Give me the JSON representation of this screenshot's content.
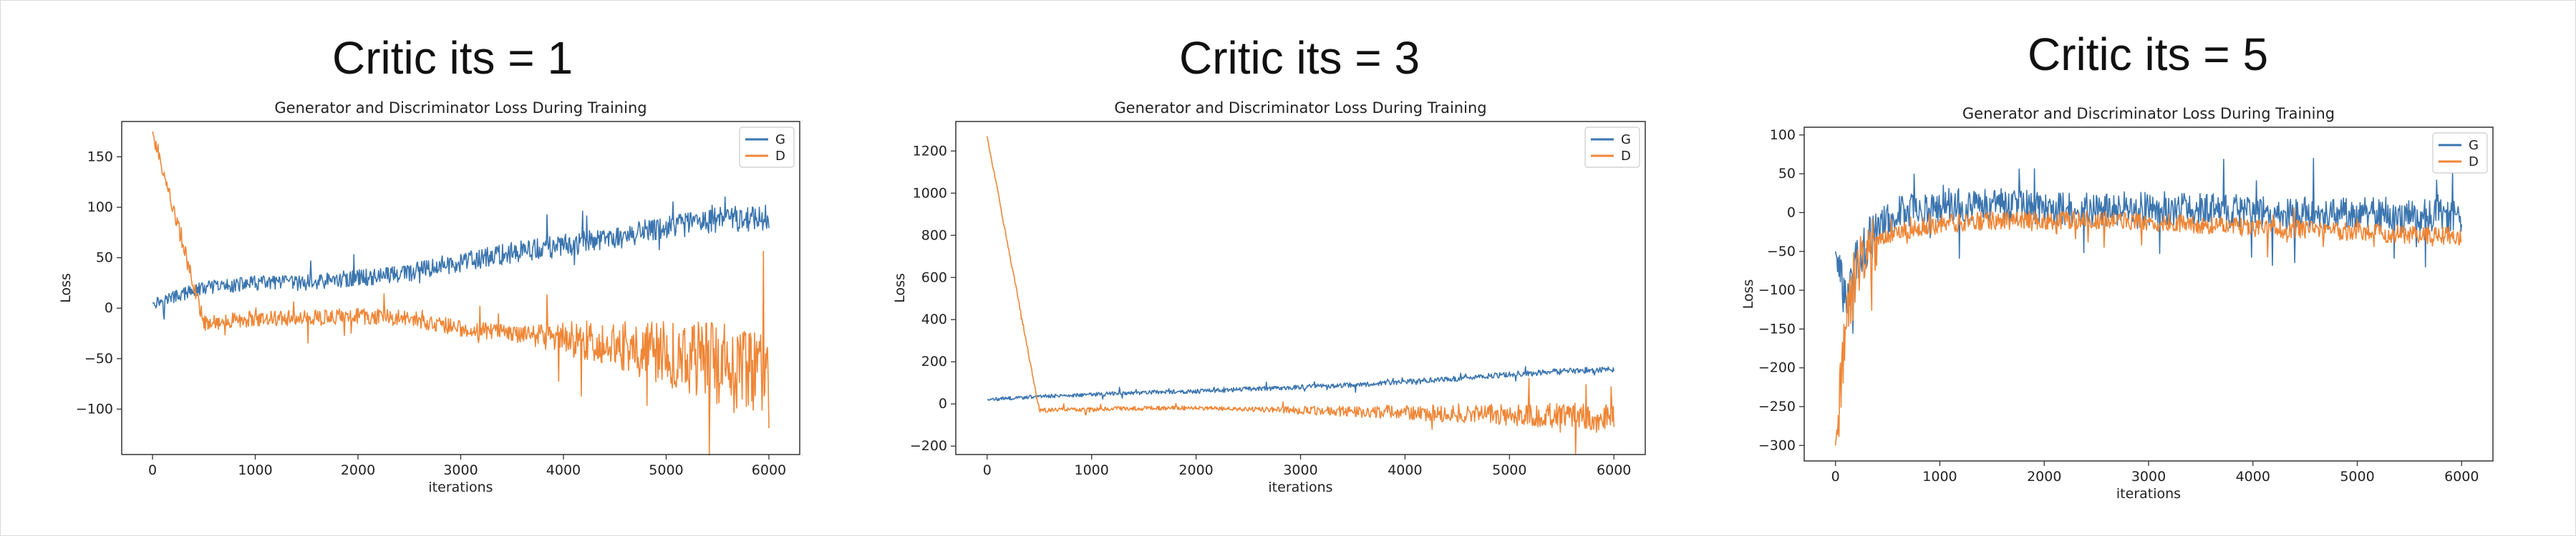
{
  "panels": [
    {
      "heading": "Critic its = 1"
    },
    {
      "heading": "Critic its = 3"
    },
    {
      "heading": "Critic its = 5"
    }
  ],
  "chart_data": [
    {
      "type": "line",
      "title": "Generator and Discriminator Loss During Training",
      "xlabel": "iterations",
      "ylabel": "Loss",
      "xlim": [
        -300,
        6300
      ],
      "ylim": [
        -145,
        185
      ],
      "xticks": [
        0,
        1000,
        2000,
        3000,
        4000,
        5000,
        6000
      ],
      "yticks": [
        -100,
        -50,
        0,
        50,
        100,
        150
      ],
      "legend": "top-right",
      "grid": false,
      "series": [
        {
          "name": "G",
          "color": "#3b75af",
          "x": [
            0,
            500,
            1000,
            1500,
            2000,
            2500,
            3000,
            3500,
            4000,
            4500,
            5000,
            5500,
            6000
          ],
          "values": [
            5,
            20,
            25,
            25,
            30,
            35,
            45,
            55,
            62,
            70,
            80,
            88,
            90
          ]
        },
        {
          "name": "D",
          "color": "#ef8636",
          "x": [
            0,
            500,
            1000,
            1500,
            2000,
            2500,
            3000,
            3500,
            4000,
            4500,
            5000,
            5500,
            6000
          ],
          "values": [
            175,
            -15,
            -10,
            -10,
            -8,
            -10,
            -20,
            -25,
            -30,
            -35,
            -45,
            -55,
            -75
          ]
        }
      ]
    },
    {
      "type": "line",
      "title": "Generator and Discriminator Loss During Training",
      "xlabel": "iterations",
      "ylabel": "Loss",
      "xlim": [
        -300,
        6300
      ],
      "ylim": [
        -240,
        1340
      ],
      "xticks": [
        0,
        1000,
        2000,
        3000,
        4000,
        5000,
        6000
      ],
      "yticks": [
        -200,
        0,
        200,
        400,
        600,
        800,
        1000,
        1200
      ],
      "legend": "top-right",
      "grid": false,
      "series": [
        {
          "name": "G",
          "color": "#3b75af",
          "x": [
            0,
            500,
            1000,
            1500,
            2000,
            2500,
            3000,
            3500,
            4000,
            4500,
            5000,
            5500,
            6000
          ],
          "values": [
            20,
            35,
            45,
            55,
            60,
            70,
            80,
            90,
            105,
            120,
            140,
            155,
            165
          ]
        },
        {
          "name": "D",
          "color": "#ef8636",
          "x": [
            0,
            500,
            1000,
            1500,
            2000,
            2500,
            3000,
            3500,
            4000,
            4500,
            5000,
            5500,
            6000
          ],
          "values": [
            1270,
            -30,
            -25,
            -20,
            -20,
            -25,
            -30,
            -35,
            -40,
            -45,
            -50,
            -55,
            -60
          ]
        }
      ]
    },
    {
      "type": "line",
      "title": "Generator and Discriminator Loss During Training",
      "xlabel": "iterations",
      "ylabel": "Loss",
      "xlim": [
        -300,
        6300
      ],
      "ylim": [
        -320,
        110
      ],
      "xticks": [
        0,
        1000,
        2000,
        3000,
        4000,
        5000,
        6000
      ],
      "yticks": [
        -300,
        -250,
        -200,
        -150,
        -100,
        -50,
        0,
        50,
        100
      ],
      "legend": "top-right",
      "grid": false,
      "series": [
        {
          "name": "G",
          "color": "#3b75af",
          "x": [
            0,
            100,
            200,
            400,
            600,
            1000,
            1500,
            2000,
            2500,
            3000,
            3500,
            4000,
            4500,
            5000,
            5500,
            6000
          ],
          "values": [
            -50,
            -120,
            -60,
            -20,
            0,
            10,
            10,
            5,
            5,
            5,
            5,
            0,
            0,
            0,
            -5,
            -5
          ]
        },
        {
          "name": "D",
          "color": "#ef8636",
          "x": [
            0,
            100,
            200,
            400,
            600,
            1000,
            1500,
            2000,
            2500,
            3000,
            3500,
            4000,
            4500,
            5000,
            5500,
            6000
          ],
          "values": [
            -300,
            -150,
            -70,
            -40,
            -25,
            -15,
            -10,
            -10,
            -10,
            -12,
            -15,
            -20,
            -22,
            -25,
            -28,
            -30
          ]
        }
      ]
    }
  ]
}
